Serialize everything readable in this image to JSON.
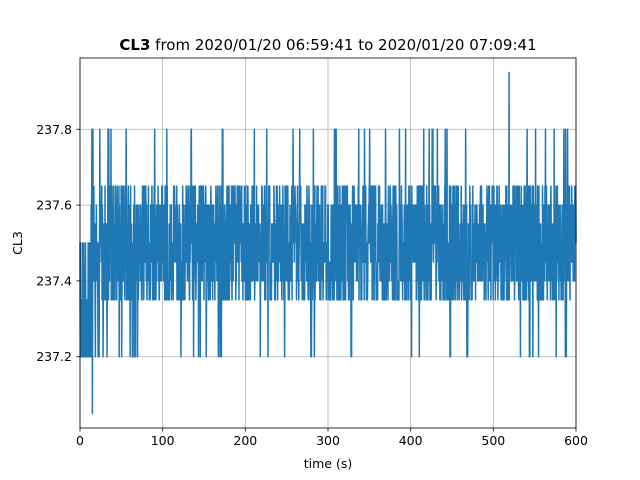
{
  "chart_data": {
    "type": "line",
    "title_bold": "CL3",
    "title_rest": " from 2020/01/20 06:59:41 to 2020/01/20 07:09:41",
    "xlabel": "time (s)",
    "ylabel": "CL3",
    "xlim": [
      0,
      600
    ],
    "ylim": [
      237.012,
      237.988
    ],
    "xticks": [
      0,
      100,
      200,
      300,
      400,
      500,
      600
    ],
    "yticks": [
      237.2,
      237.4,
      237.6,
      237.8
    ],
    "grid": true,
    "line_color": "#1f77b4",
    "quantization_step": 0.05,
    "band_levels": [
      237.35,
      237.4,
      237.45,
      237.5,
      237.55,
      237.6,
      237.65
    ],
    "low_excursion_level": 237.2,
    "high_excursion_level": 237.8,
    "notable_points": [
      {
        "x": 15,
        "y": 237.05
      },
      {
        "x": 519,
        "y": 237.95
      }
    ]
  }
}
